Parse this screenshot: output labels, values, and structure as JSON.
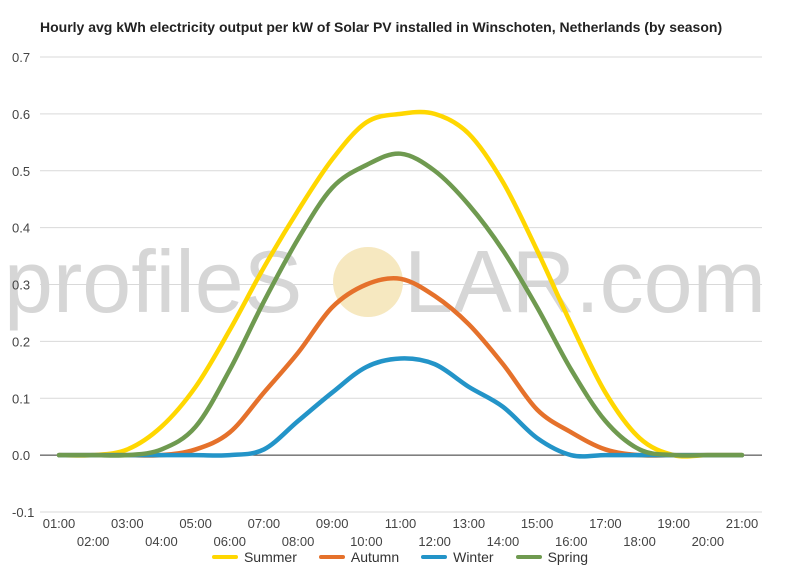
{
  "watermark": {
    "left": "profileS",
    "right": "LAR.com"
  },
  "chart_data": {
    "type": "line",
    "title": "Hourly avg kWh electricity output per kW of Solar PV installed in Winschoten, Netherlands (by season)",
    "xlabel": "",
    "ylabel": "",
    "x": [
      "01:00",
      "02:00",
      "03:00",
      "04:00",
      "05:00",
      "06:00",
      "07:00",
      "08:00",
      "09:00",
      "10:00",
      "11:00",
      "12:00",
      "13:00",
      "14:00",
      "15:00",
      "16:00",
      "17:00",
      "18:00",
      "19:00",
      "20:00",
      "21:00"
    ],
    "ylim": [
      -0.1,
      0.7
    ],
    "yticks": [
      "-0.1",
      "0.0",
      "0.1",
      "0.2",
      "0.3",
      "0.4",
      "0.5",
      "0.6",
      "0.7"
    ],
    "grid": true,
    "legend_position": "bottom",
    "series": [
      {
        "name": "Summer",
        "color": "#FFD700",
        "values": [
          0,
          0,
          0.01,
          0.05,
          0.12,
          0.22,
          0.33,
          0.43,
          0.52,
          0.585,
          0.6,
          0.6,
          0.565,
          0.48,
          0.36,
          0.23,
          0.11,
          0.03,
          0,
          0,
          0
        ]
      },
      {
        "name": "Autumn",
        "color": "#E5712B",
        "values": [
          0,
          0,
          0,
          0,
          0.01,
          0.04,
          0.11,
          0.18,
          0.26,
          0.3,
          0.31,
          0.28,
          0.23,
          0.16,
          0.08,
          0.04,
          0.01,
          0,
          0,
          0,
          0
        ]
      },
      {
        "name": "Winter",
        "color": "#2394C8",
        "values": [
          0,
          0,
          0,
          0,
          0,
          0,
          0.01,
          0.06,
          0.11,
          0.155,
          0.17,
          0.16,
          0.12,
          0.085,
          0.03,
          0,
          0,
          0,
          0,
          0,
          0
        ]
      },
      {
        "name": "Spring",
        "color": "#6F9A50",
        "values": [
          0,
          0,
          0,
          0.01,
          0.05,
          0.15,
          0.27,
          0.38,
          0.47,
          0.51,
          0.53,
          0.5,
          0.44,
          0.36,
          0.26,
          0.15,
          0.06,
          0.01,
          0,
          0,
          0
        ]
      }
    ]
  }
}
